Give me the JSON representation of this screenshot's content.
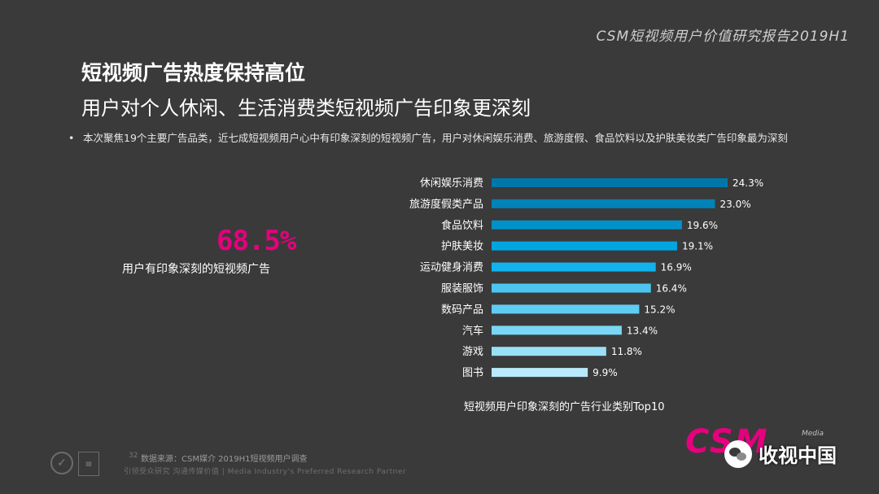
{
  "header": {
    "report_title": "CSM短视频用户价值研究报告2019H1"
  },
  "titles": {
    "line1": "短视频广告热度保持高位",
    "line2": "用户对个人休闲、生活消费类短视频广告印象更深刻"
  },
  "bullet": {
    "symbol": "•",
    "text": "本次聚焦19个主要广告品类，近七成短视频用户心中有印象深刻的短视频广告，用户对休闲娱乐消费、旅游度假、食品饮料以及护肤美妆类广告印象最为深刻"
  },
  "highlight": {
    "value": "68.5%",
    "label": "用户有印象深刻的短视频广告"
  },
  "chart_data": {
    "type": "bar",
    "orientation": "horizontal",
    "title": "短视频用户印象深刻的广告行业类别Top10",
    "categories": [
      "休闲娱乐消费",
      "旅游度假类产品",
      "食品饮料",
      "护肤美妆",
      "运动健身消费",
      "服装服饰",
      "数码产品",
      "汽车",
      "游戏",
      "图书"
    ],
    "values": [
      24.3,
      23.0,
      19.6,
      19.1,
      16.9,
      16.4,
      15.2,
      13.4,
      11.8,
      9.9
    ],
    "value_labels": [
      "24.3%",
      "23.0%",
      "19.6%",
      "19.1%",
      "16.9%",
      "16.4%",
      "15.2%",
      "13.4%",
      "11.8%",
      "9.9%"
    ],
    "unit": "%",
    "xlim": [
      0,
      24.3
    ],
    "colors": [
      "#0077a8",
      "#0083b8",
      "#0091c8",
      "#00a6e0",
      "#12b3ec",
      "#4cc6f1",
      "#5fcdf3",
      "#7ad6f5",
      "#98e0f8",
      "#b8eafb"
    ],
    "grid": false,
    "legend": "none"
  },
  "footer": {
    "page_number": "32",
    "source": "数据来源：CSM媒介 2019H1短视频用户调查",
    "tagline": "引领受众研究  沟通传媒价值 | Media Industry's Preferred Research Partner"
  },
  "logo": {
    "brand": "CSM",
    "sub": "Media"
  },
  "watermark": {
    "name": "收视中国"
  }
}
